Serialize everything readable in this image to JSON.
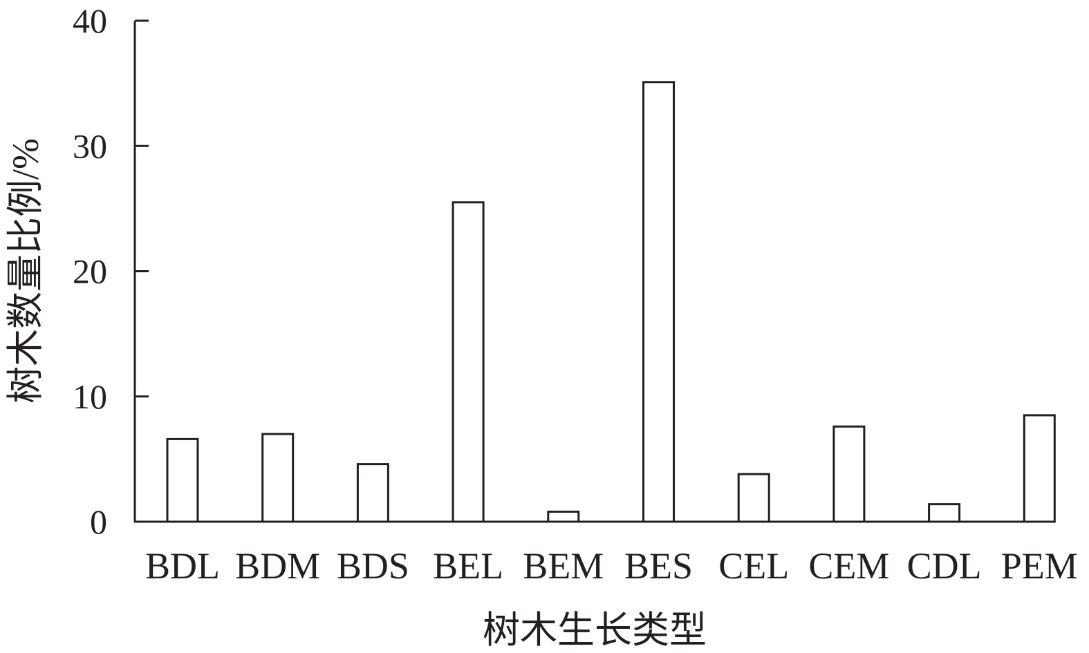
{
  "chart_data": {
    "type": "bar",
    "title": "",
    "xlabel": "树木生长类型",
    "ylabel": "树木数量比例/%",
    "categories": [
      "BDL",
      "BDM",
      "BDS",
      "BEL",
      "BEM",
      "BES",
      "CEL",
      "CEM",
      "CDL",
      "PEM"
    ],
    "values": [
      6.6,
      7.0,
      4.6,
      25.5,
      0.8,
      35.1,
      3.8,
      7.6,
      1.4,
      8.5
    ],
    "ylim": [
      0,
      40
    ],
    "yticks": [
      "0",
      "10",
      "20",
      "30",
      "40"
    ],
    "grid": false,
    "bar_fill": "#ffffff",
    "bar_stroke": "#231f20"
  }
}
